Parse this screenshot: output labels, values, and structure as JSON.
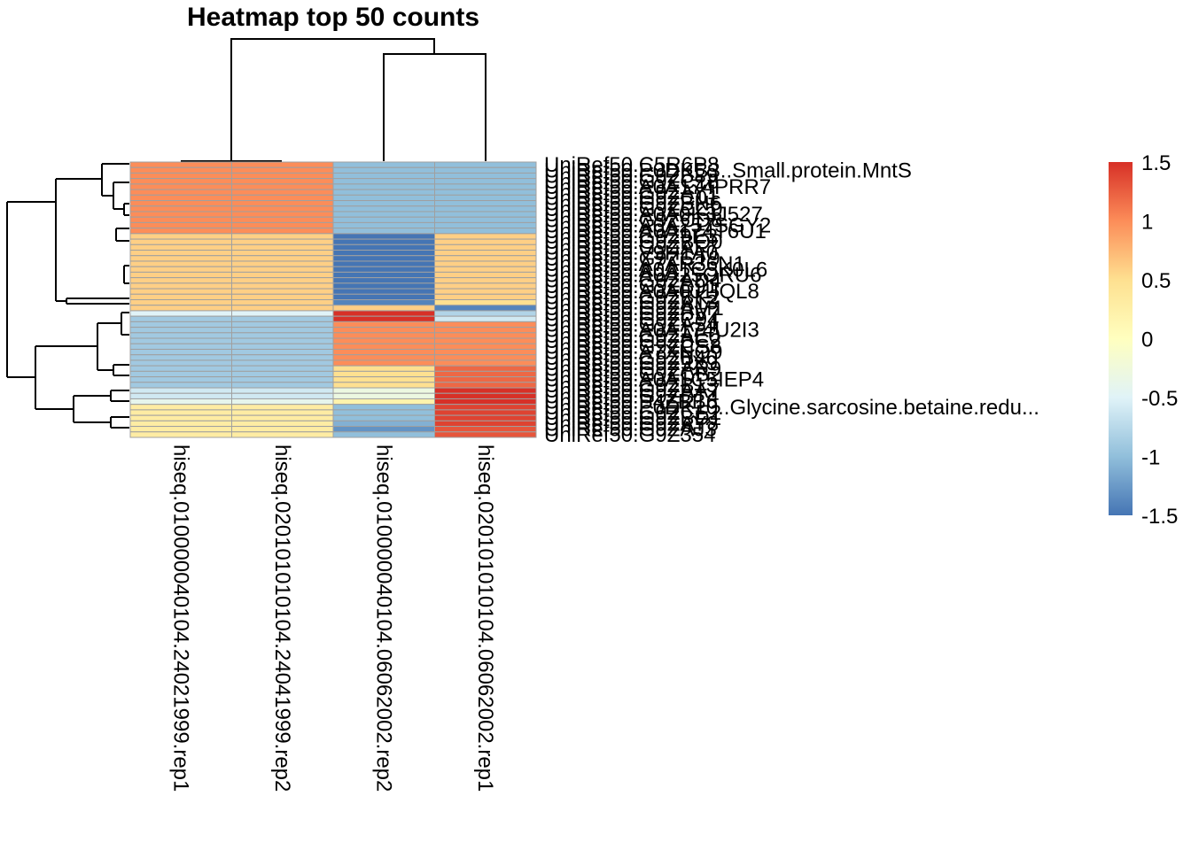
{
  "chart_data": {
    "type": "heatmap",
    "title": "Heatmap top 50 counts",
    "columns": [
      "hiseq.0100000401​04.24021999.rep1",
      "hiseq.0201010101​04.24041999.rep2",
      "hiseq.0100000401​04.06062002.rep2",
      "hiseq.0201010101​04.06062002.rep1"
    ],
    "column_dendrogram": "((1,2),(3,4))",
    "row_dendrogram": "four clusters: rows 1-13 and 14-28 join, then rows 29-41 and 42-50 join, top split between rows 28 and 29",
    "rows": [
      {
        "label": "UniRef50.C5R6P8",
        "values": [
          1.0,
          1.0,
          -1.0,
          -1.0
        ]
      },
      {
        "label": "UniRef50.P0DKB3..Small.protein.MntS",
        "values": [
          1.0,
          1.0,
          -1.0,
          -1.0
        ]
      },
      {
        "label": "UniRef50.G9ZB89",
        "values": [
          1.0,
          1.0,
          -1.0,
          -1.0
        ]
      },
      {
        "label": "UniRef50.G9ZC18",
        "values": [
          1.0,
          1.0,
          -1.0,
          -1.0
        ]
      },
      {
        "label": "UniRef50.A0A174PRR7",
        "values": [
          1.0,
          1.0,
          -1.0,
          -1.0
        ]
      },
      {
        "label": "UniRef50.G9ZAY1",
        "values": [
          1.0,
          1.0,
          -1.0,
          -1.0
        ]
      },
      {
        "label": "UniRef50.G9ZC01",
        "values": [
          1.0,
          1.0,
          -1.0,
          -1.0
        ]
      },
      {
        "label": "UniRef50.G9ZBN6",
        "values": [
          1.0,
          1.0,
          -1.0,
          -1.0
        ]
      },
      {
        "label": "UniRef50.G9ZCC0",
        "values": [
          1.0,
          1.0,
          -1.0,
          -1.0
        ]
      },
      {
        "label": "UniRef50.A0A0K3J527",
        "values": [
          1.0,
          1.0,
          -1.0,
          -1.0
        ]
      },
      {
        "label": "UniRef50.G9ZCD8",
        "values": [
          1.0,
          1.0,
          -1.0,
          -1.0
        ]
      },
      {
        "label": "UniRef50.A0A257SGY2",
        "values": [
          1.0,
          1.0,
          -1.0,
          -1.0
        ]
      },
      {
        "label": "UniRef50.A0A174T6U1",
        "values": [
          1.0,
          1.0,
          -1.0,
          -1.0
        ]
      },
      {
        "label": "UniRef50.G9Z9E3",
        "values": [
          0.6,
          0.6,
          -1.5,
          0.6
        ]
      },
      {
        "label": "UniRef50.G9ZBQ0",
        "values": [
          0.6,
          0.6,
          -1.5,
          0.6
        ]
      },
      {
        "label": "UniRef50.G9ZAF7",
        "values": [
          0.6,
          0.6,
          -1.5,
          0.6
        ]
      },
      {
        "label": "UniRef50.V9H1A0",
        "values": [
          0.6,
          0.6,
          -1.5,
          0.6
        ]
      },
      {
        "label": "UniRef50.G9ZCT9",
        "values": [
          0.6,
          0.6,
          -1.5,
          0.6
        ]
      },
      {
        "label": "UniRef50.A7AR36N1",
        "values": [
          0.6,
          0.6,
          -1.5,
          0.6
        ]
      },
      {
        "label": "UniRef50.A0A1C5K0L6",
        "values": [
          0.6,
          0.6,
          -1.5,
          0.6
        ]
      },
      {
        "label": "UniRef50.A0A25QRU6",
        "values": [
          0.6,
          0.6,
          -1.5,
          0.6
        ]
      },
      {
        "label": "UniRef50.G9ZAD4",
        "values": [
          0.6,
          0.6,
          -1.5,
          0.6
        ]
      },
      {
        "label": "UniRef50.G9ZB91",
        "values": [
          0.6,
          0.6,
          -1.5,
          0.6
        ]
      },
      {
        "label": "UniRef50.A0A0J1IQL8",
        "values": [
          0.6,
          0.6,
          -1.5,
          0.6
        ]
      },
      {
        "label": "UniRef50.G9ZBK2",
        "values": [
          0.6,
          0.6,
          -1.5,
          0.6
        ]
      },
      {
        "label": "UniRef50.G9ZA13",
        "values": [
          0.6,
          0.6,
          -1.4,
          0.5
        ]
      },
      {
        "label": "UniRef50.G9ZAM1",
        "values": [
          0.6,
          0.6,
          0.6,
          -1.4
        ]
      },
      {
        "label": "UniRef50.G9ZBV7",
        "values": [
          -0.5,
          -0.5,
          1.5,
          -0.8
        ]
      },
      {
        "label": "UniRef50.G9ZC94",
        "values": [
          -0.9,
          -0.9,
          1.5,
          -0.6
        ]
      },
      {
        "label": "UniRef50.G9ZA54",
        "values": [
          -0.9,
          -0.9,
          1.0,
          1.0
        ]
      },
      {
        "label": "UniRef50.A0A174U2I3",
        "values": [
          -0.9,
          -0.9,
          1.0,
          1.0
        ]
      },
      {
        "label": "UniRef50.G9ZAE0",
        "values": [
          -0.9,
          -0.9,
          1.0,
          1.0
        ]
      },
      {
        "label": "UniRef50.G9ZBC2",
        "values": [
          -0.9,
          -0.9,
          1.0,
          1.0
        ]
      },
      {
        "label": "UniRef50.G9ZCS8",
        "values": [
          -0.9,
          -0.9,
          1.0,
          1.0
        ]
      },
      {
        "label": "UniRef50.A7XNQ9",
        "values": [
          -0.9,
          -0.9,
          1.0,
          1.0
        ]
      },
      {
        "label": "UniRef50.G9ZB40",
        "values": [
          -0.9,
          -0.9,
          1.0,
          1.0
        ]
      },
      {
        "label": "UniRef50.G9Z9X9",
        "values": [
          -0.9,
          -0.9,
          1.0,
          1.0
        ]
      },
      {
        "label": "UniRef50.G9ZAR9",
        "values": [
          -0.9,
          -0.9,
          0.5,
          1.2
        ]
      },
      {
        "label": "UniRef50.G9ZCB2",
        "values": [
          -0.9,
          -0.9,
          0.5,
          1.2
        ]
      },
      {
        "label": "UniRef50.A0A1C5IEP4",
        "values": [
          -0.9,
          -0.9,
          0.5,
          1.2
        ]
      },
      {
        "label": "UniRef50.G9ZB13",
        "values": [
          -0.9,
          -0.9,
          0.5,
          1.2
        ]
      },
      {
        "label": "UniRef50.G9ZAA7",
        "values": [
          -0.6,
          -0.6,
          -0.3,
          1.5
        ]
      },
      {
        "label": "UniRef50.G9ZBT4",
        "values": [
          -0.6,
          -0.6,
          -0.3,
          1.5
        ]
      },
      {
        "label": "UniRef50.P4ZBB6",
        "values": [
          -0.4,
          -0.4,
          0.2,
          1.5
        ]
      },
      {
        "label": "UniRef50.P0DK10..Glycine.sarcosine.betaine.redu...",
        "values": [
          0.3,
          0.3,
          -1.0,
          1.4
        ]
      },
      {
        "label": "UniRef50.G9ZCE2",
        "values": [
          0.3,
          0.3,
          -1.0,
          1.4
        ]
      },
      {
        "label": "UniRef50.G9ZBD1",
        "values": [
          0.3,
          0.3,
          -1.0,
          1.4
        ]
      },
      {
        "label": "UniRef50.G9ZAY8",
        "values": [
          0.3,
          0.3,
          -1.1,
          1.4
        ]
      },
      {
        "label": "UniRef50.G9ZAJ3",
        "values": [
          0.3,
          0.3,
          -1.3,
          1.3
        ]
      },
      {
        "label": "UniRef50.G9Z354",
        "values": [
          0.3,
          0.3,
          -1.0,
          1.3
        ]
      }
    ],
    "color_scale": {
      "min": -1.5,
      "max": 1.5,
      "colors": [
        "#4575b4",
        "#91bfdb",
        "#e0f3f8",
        "#ffffbf",
        "#fee090",
        "#fc8d59",
        "#d73027"
      ]
    },
    "legend": {
      "placement": "right",
      "ticks": [
        "1.5",
        "1",
        "0.5",
        "0",
        "-0.5",
        "-1",
        "-1.5"
      ],
      "tick_values": [
        1.5,
        1,
        0.5,
        0,
        -0.5,
        -1,
        -1.5
      ]
    }
  }
}
